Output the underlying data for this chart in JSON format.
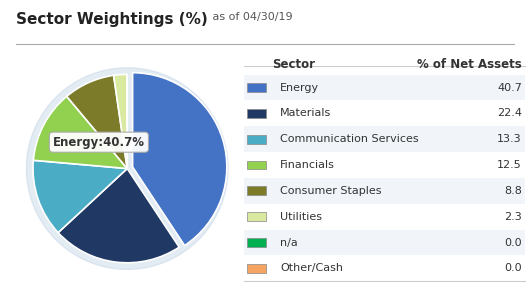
{
  "title_bold": "Sector Weightings (%)",
  "title_date": " as of 04/30/19",
  "sectors": [
    "Energy",
    "Materials",
    "Communication Services",
    "Financials",
    "Consumer Staples",
    "Utilities",
    "n/a",
    "Other/Cash"
  ],
  "values": [
    40.7,
    22.4,
    13.3,
    12.5,
    8.8,
    2.3,
    0.0,
    0.0
  ],
  "colors": [
    "#4472C4",
    "#1F3864",
    "#4BACC6",
    "#92D050",
    "#7B7B2A",
    "#D9E9A0",
    "#00B050",
    "#F4A460"
  ],
  "explode_index": 0,
  "tooltip_text": "Energy:40.7%",
  "bg_color": "#FFFFFF",
  "table_header_sector": "Sector",
  "table_header_pct": "% of Net Assets",
  "pie_shadow_color": "#C8D8E8",
  "pie_edge_color": "#FFFFFF"
}
